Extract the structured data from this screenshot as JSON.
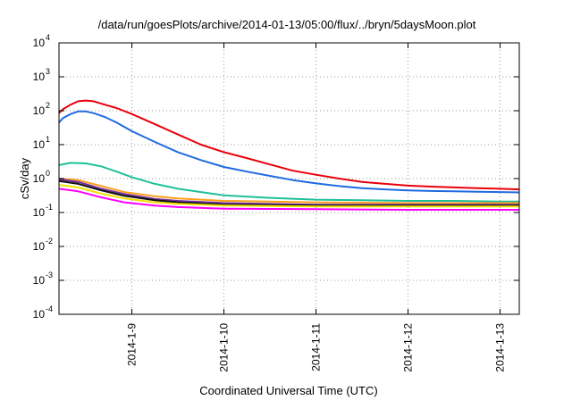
{
  "chart_data": {
    "type": "line",
    "title": "/data/run/goesPlots/archive/2014-01-13/05:00/flux/../bryn/5daysMoon.plot",
    "xlabel": "Coordinated Universal Time (UTC)",
    "ylabel": "cSv/day",
    "y_scale": "log",
    "ylim": [
      0.0001,
      10000
    ],
    "xlim": [
      "2014-01-08 05:00",
      "2014-01-13 05:00"
    ],
    "x_unit": "hours",
    "y_ticks": [
      {
        "base": "10",
        "exp": "-4",
        "value": 0.0001
      },
      {
        "base": "10",
        "exp": "-3",
        "value": 0.001
      },
      {
        "base": "10",
        "exp": "-2",
        "value": 0.01
      },
      {
        "base": "10",
        "exp": "-1",
        "value": 0.1
      },
      {
        "base": "10",
        "exp": "0",
        "value": 1
      },
      {
        "base": "10",
        "exp": "1",
        "value": 10
      },
      {
        "base": "10",
        "exp": "2",
        "value": 100
      },
      {
        "base": "10",
        "exp": "3",
        "value": 1000
      },
      {
        "base": "10",
        "exp": "4",
        "value": 10000
      }
    ],
    "x_ticks": [
      {
        "label": "2014-1-9",
        "value": "2014-01-09 00:00"
      },
      {
        "label": "2014-1-10",
        "value": "2014-01-10 00:00"
      },
      {
        "label": "2014-1-11",
        "value": "2014-01-11 00:00"
      },
      {
        "label": "2014-1-12",
        "value": "2014-01-12 00:00"
      },
      {
        "label": "2014-1-13",
        "value": "2014-01-13 00:00"
      }
    ],
    "grid": true,
    "series": [
      {
        "color": "#e8000b",
        "x": [
          "2014-01-08 05:00",
          "2014-01-08 06:00",
          "2014-01-08 08:00",
          "2014-01-08 10:00",
          "2014-01-08 12:00",
          "2014-01-08 14:00",
          "2014-01-08 17:00",
          "2014-01-08 20:00",
          "2014-01-09 00:00",
          "2014-01-09 06:00",
          "2014-01-09 12:00",
          "2014-01-09 18:00",
          "2014-01-10 00:00",
          "2014-01-10 06:00",
          "2014-01-10 12:00",
          "2014-01-10 18:00",
          "2014-01-11 00:00",
          "2014-01-11 06:00",
          "2014-01-11 12:00",
          "2014-01-11 18:00",
          "2014-01-12 00:00",
          "2014-01-12 06:00",
          "2014-01-12 12:00",
          "2014-01-12 18:00",
          "2014-01-13 00:00",
          "2014-01-13 05:00"
        ],
        "values": [
          85,
          110,
          150,
          190,
          200,
          190,
          150,
          120,
          80,
          40,
          20,
          10,
          6,
          4,
          2.6,
          1.7,
          1.3,
          1.0,
          0.8,
          0.7,
          0.62,
          0.58,
          0.55,
          0.52,
          0.5,
          0.48
        ]
      },
      {
        "color": "#1f6be0",
        "x": [
          "2014-01-08 05:00",
          "2014-01-08 06:00",
          "2014-01-08 08:00",
          "2014-01-08 10:00",
          "2014-01-08 12:00",
          "2014-01-08 14:00",
          "2014-01-08 17:00",
          "2014-01-08 20:00",
          "2014-01-09 00:00",
          "2014-01-09 06:00",
          "2014-01-09 12:00",
          "2014-01-09 18:00",
          "2014-01-10 00:00",
          "2014-01-10 06:00",
          "2014-01-10 12:00",
          "2014-01-10 18:00",
          "2014-01-11 00:00",
          "2014-01-11 06:00",
          "2014-01-11 12:00",
          "2014-01-11 18:00",
          "2014-01-12 00:00",
          "2014-01-12 06:00",
          "2014-01-12 12:00",
          "2014-01-12 18:00",
          "2014-01-13 00:00",
          "2014-01-13 05:00"
        ],
        "values": [
          45,
          60,
          80,
          95,
          95,
          85,
          65,
          45,
          25,
          12,
          6,
          3.5,
          2.2,
          1.6,
          1.2,
          0.9,
          0.72,
          0.6,
          0.52,
          0.48,
          0.45,
          0.43,
          0.42,
          0.41,
          0.4,
          0.39
        ]
      },
      {
        "color": "#1ec09a",
        "x": [
          "2014-01-08 05:00",
          "2014-01-08 08:00",
          "2014-01-08 12:00",
          "2014-01-08 16:00",
          "2014-01-08 20:00",
          "2014-01-09 00:00",
          "2014-01-09 06:00",
          "2014-01-09 12:00",
          "2014-01-09 18:00",
          "2014-01-10 00:00",
          "2014-01-10 12:00",
          "2014-01-11 00:00",
          "2014-01-11 12:00",
          "2014-01-12 00:00",
          "2014-01-12 12:00",
          "2014-01-13 00:00",
          "2014-01-13 05:00"
        ],
        "values": [
          2.5,
          2.9,
          2.8,
          2.3,
          1.6,
          1.1,
          0.7,
          0.5,
          0.4,
          0.32,
          0.27,
          0.24,
          0.23,
          0.22,
          0.22,
          0.21,
          0.21
        ]
      },
      {
        "color": "#ff9e1b",
        "x": [
          "2014-01-08 05:00",
          "2014-01-08 10:00",
          "2014-01-08 16:00",
          "2014-01-08 22:00",
          "2014-01-09 06:00",
          "2014-01-09 12:00",
          "2014-01-10 00:00",
          "2014-01-11 00:00",
          "2014-01-12 00:00",
          "2014-01-13 00:00",
          "2014-01-13 05:00"
        ],
        "values": [
          1.0,
          0.9,
          0.6,
          0.4,
          0.3,
          0.26,
          0.22,
          0.2,
          0.19,
          0.19,
          0.19
        ]
      },
      {
        "color": "#7030a0",
        "x": [
          "2014-01-08 05:00",
          "2014-01-08 10:00",
          "2014-01-08 16:00",
          "2014-01-08 22:00",
          "2014-01-09 06:00",
          "2014-01-09 12:00",
          "2014-01-10 00:00",
          "2014-01-11 00:00",
          "2014-01-12 00:00",
          "2014-01-13 00:00",
          "2014-01-13 05:00"
        ],
        "values": [
          0.95,
          0.8,
          0.5,
          0.35,
          0.25,
          0.22,
          0.19,
          0.17,
          0.17,
          0.17,
          0.17
        ]
      },
      {
        "color": "#111111",
        "x": [
          "2014-01-08 05:00",
          "2014-01-08 10:00",
          "2014-01-08 16:00",
          "2014-01-08 22:00",
          "2014-01-09 06:00",
          "2014-01-09 12:00",
          "2014-01-10 00:00",
          "2014-01-11 00:00",
          "2014-01-12 00:00",
          "2014-01-13 00:00",
          "2014-01-13 05:00"
        ],
        "values": [
          0.85,
          0.7,
          0.45,
          0.31,
          0.23,
          0.2,
          0.17,
          0.16,
          0.16,
          0.16,
          0.16
        ]
      },
      {
        "color": "#f0e000",
        "x": [
          "2014-01-08 05:00",
          "2014-01-08 10:00",
          "2014-01-08 16:00",
          "2014-01-08 22:00",
          "2014-01-09 06:00",
          "2014-01-09 12:00",
          "2014-01-10 00:00",
          "2014-01-11 00:00",
          "2014-01-12 00:00",
          "2014-01-13 00:00",
          "2014-01-13 05:00"
        ],
        "values": [
          0.65,
          0.55,
          0.36,
          0.26,
          0.2,
          0.18,
          0.16,
          0.15,
          0.15,
          0.15,
          0.15
        ]
      },
      {
        "color": "#ff00ff",
        "x": [
          "2014-01-08 05:00",
          "2014-01-08 10:00",
          "2014-01-08 16:00",
          "2014-01-08 22:00",
          "2014-01-09 06:00",
          "2014-01-09 12:00",
          "2014-01-10 00:00",
          "2014-01-11 00:00",
          "2014-01-12 00:00",
          "2014-01-13 00:00",
          "2014-01-13 05:00"
        ],
        "values": [
          0.5,
          0.42,
          0.28,
          0.2,
          0.16,
          0.145,
          0.13,
          0.125,
          0.12,
          0.12,
          0.12
        ]
      }
    ]
  }
}
